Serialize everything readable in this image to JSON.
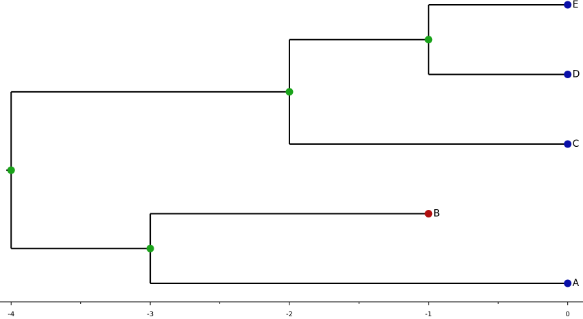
{
  "chart_data": {
    "type": "tree",
    "xlim": [
      -4.08,
      0.11
    ],
    "xticks": [
      -4,
      -3,
      -2,
      -1,
      0
    ],
    "xminorticks": [
      -3.5,
      -2.5,
      -1.5,
      -0.5
    ],
    "nodes": [
      {
        "x": -4,
        "children": [
          1,
          2
        ],
        "color": "#1aa31a"
      },
      {
        "x": -2,
        "children": [
          3,
          4
        ],
        "color": "#1aa31a"
      },
      {
        "x": -3,
        "children": [
          7,
          8
        ],
        "color": "#1aa31a"
      },
      {
        "x": -1,
        "children": [
          5,
          6
        ],
        "color": "#1aa31a"
      },
      {
        "x": 0,
        "label": "C",
        "color": "#0a10a8"
      },
      {
        "x": 0,
        "label": "E",
        "color": "#0a10a8"
      },
      {
        "x": 0,
        "label": "D",
        "color": "#0a10a8"
      },
      {
        "x": -1,
        "label": "B",
        "color": "#b01010"
      },
      {
        "x": 0,
        "label": "A",
        "color": "#0a10a8"
      }
    ]
  }
}
